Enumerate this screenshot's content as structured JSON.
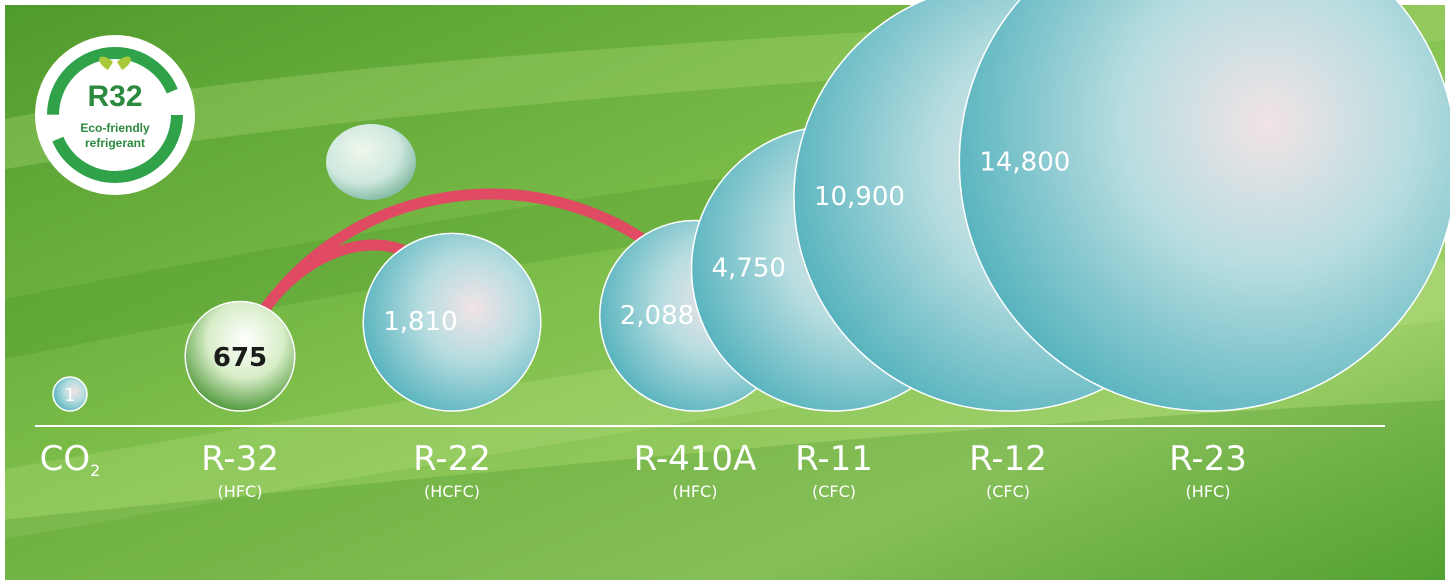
{
  "badge": {
    "logo_text": "R32",
    "line1": "Eco-friendly",
    "line2": "refrigerant"
  },
  "colors": {
    "bubble": "#6cc3cc",
    "highlight_bubble": "#4e9a34",
    "arrow": "#e04a63",
    "baseline": "#ffffff",
    "leaf_dark": "#2f7d1b",
    "leaf_light": "#b4dd7f"
  },
  "chart_data": {
    "type": "bubble",
    "title": "",
    "xlabel": "",
    "ylabel": "",
    "categories": [
      {
        "name": "CO",
        "sub": "2",
        "type": "",
        "value": 1,
        "value_label": "1"
      },
      {
        "name": "R-32",
        "sub": "",
        "type": "(HFC)",
        "value": 675,
        "value_label": "675",
        "highlight": true
      },
      {
        "name": "R-22",
        "sub": "",
        "type": "(HCFC)",
        "value": 1810,
        "value_label": "1,810"
      },
      {
        "name": "R-410A",
        "sub": "",
        "type": "(HFC)",
        "value": 2088,
        "value_label": "2,088"
      },
      {
        "name": "R-11",
        "sub": "",
        "type": "(CFC)",
        "value": 4750,
        "value_label": "4,750"
      },
      {
        "name": "R-12",
        "sub": "",
        "type": "(CFC)",
        "value": 10900,
        "value_label": "10,900"
      },
      {
        "name": "R-23",
        "sub": "",
        "type": "(HFC)",
        "value": 14800,
        "value_label": "14,800"
      }
    ],
    "arrows": [
      {
        "from": "R-22",
        "to": "R-32"
      },
      {
        "from": "R-410A",
        "to": "R-32"
      }
    ],
    "grid": false,
    "legend": "none"
  }
}
